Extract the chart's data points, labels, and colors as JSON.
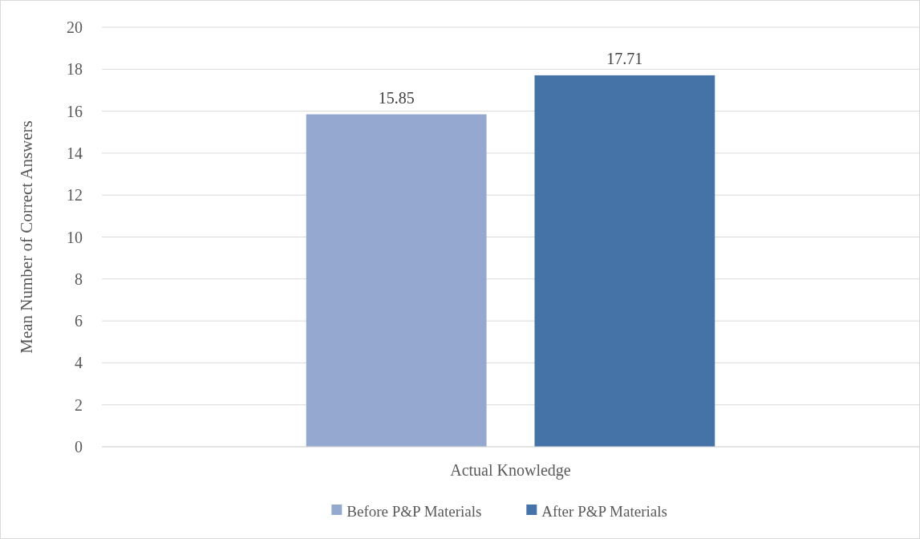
{
  "chart_data": {
    "type": "bar",
    "ylabel": "Mean Number of Correct Answers",
    "categories": [
      "Actual Knowledge"
    ],
    "series": [
      {
        "name": "Before P&P Materials",
        "color": "#95a9d0",
        "values": [
          15.85
        ]
      },
      {
        "name": "After P&P Materials",
        "color": "#4573a7",
        "values": [
          17.71
        ]
      }
    ],
    "ylim": [
      0,
      20
    ],
    "yticks": [
      0,
      2,
      4,
      6,
      8,
      10,
      12,
      14,
      16,
      18,
      20
    ],
    "grid": "y",
    "legend": "bottom",
    "data_labels": true
  }
}
